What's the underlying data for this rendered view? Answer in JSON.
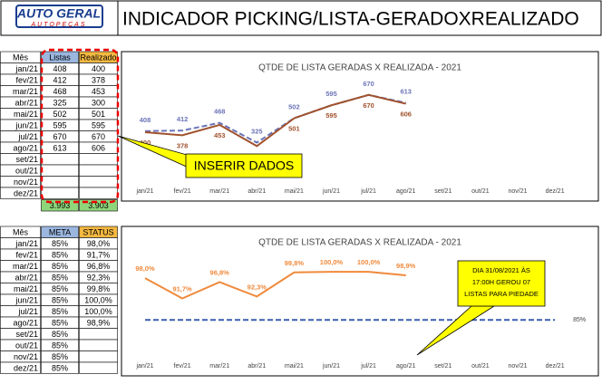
{
  "header": {
    "logo": "AUTO GERAL",
    "logo_sub": "AUTOPEÇAS",
    "title": "INDICADOR PICKING/LISTA-GERADOXREALIZADO"
  },
  "table1": {
    "columns": [
      "Mês",
      "Listas",
      "Realizado"
    ],
    "rows": [
      [
        "jan/21",
        "408",
        "400"
      ],
      [
        "fev/21",
        "412",
        "378"
      ],
      [
        "mar/21",
        "468",
        "453"
      ],
      [
        "abr/21",
        "325",
        "300"
      ],
      [
        "mai/21",
        "502",
        "501"
      ],
      [
        "jun/21",
        "595",
        "595"
      ],
      [
        "jul/21",
        "670",
        "670"
      ],
      [
        "ago/21",
        "613",
        "606"
      ],
      [
        "set/21",
        "",
        ""
      ],
      [
        "out/21",
        "",
        ""
      ],
      [
        "nov/21",
        "",
        ""
      ],
      [
        "dez/21",
        "",
        ""
      ]
    ],
    "totals": [
      "3.993",
      "3.903"
    ]
  },
  "table2": {
    "columns": [
      "Mês",
      "META",
      "STATUS"
    ],
    "rows": [
      [
        "jan/21",
        "85%",
        "98,0%"
      ],
      [
        "fev/21",
        "85%",
        "91,7%"
      ],
      [
        "mar/21",
        "85%",
        "96,8%"
      ],
      [
        "abr/21",
        "85%",
        "92,3%"
      ],
      [
        "mai/21",
        "85%",
        "99,8%"
      ],
      [
        "jun/21",
        "85%",
        "100,0%"
      ],
      [
        "jul/21",
        "85%",
        "100,0%"
      ],
      [
        "ago/21",
        "85%",
        "98,9%"
      ],
      [
        "set/21",
        "85%",
        ""
      ],
      [
        "out/21",
        "85%",
        ""
      ],
      [
        "nov/21",
        "85%",
        ""
      ],
      [
        "dez/21",
        "85%",
        ""
      ]
    ]
  },
  "callout1": "INSERIR DADOS",
  "callout2": [
    "DIA 31/08/2021 ÀS",
    "17:00H GEROU 07",
    "LISTAS PARA PIEDADE"
  ],
  "chart_data": [
    {
      "type": "line",
      "title": "QTDE DE LISTA GERADAS X REALIZADA - 2021",
      "categories": [
        "jan/21",
        "fev/21",
        "mar/21",
        "abr/21",
        "mai/21",
        "jun/21",
        "jul/21",
        "ago/21",
        "set/21",
        "out/21",
        "nov/21",
        "dez/21"
      ],
      "ylim": [
        0,
        800
      ],
      "series": [
        {
          "color": "#6b74b8",
          "dashed": true,
          "values": [
            408,
            412,
            468,
            325,
            502,
            595,
            670,
            613,
            null,
            null,
            null,
            null
          ]
        },
        {
          "color": "#a0522d",
          "dashed": false,
          "values": [
            400,
            378,
            453,
            300,
            501,
            595,
            670,
            606,
            null,
            null,
            null,
            null
          ]
        }
      ]
    },
    {
      "type": "line",
      "title": "QTDE DE LISTA GERADAS X REALIZADA - 2021",
      "categories": [
        "jan/21",
        "fev/21",
        "mar/21",
        "abr/21",
        "mai/21",
        "jun/21",
        "jul/21",
        "ago/21",
        "set/21",
        "out/21",
        "nov/21",
        "dez/21"
      ],
      "ylim": [
        80,
        102
      ],
      "series": [
        {
          "color": "#f08a3c",
          "dashed": false,
          "values": [
            98.0,
            91.7,
            96.8,
            92.3,
            99.8,
            100.0,
            100.0,
            98.9,
            null,
            null,
            null,
            null
          ],
          "value_labels": [
            "98,0%",
            "91,7%",
            "96,8%",
            "92,3%",
            "99,8%",
            "100,0%",
            "100,0%",
            "98,9%",
            null,
            null,
            null,
            null
          ]
        },
        {
          "color": "#3a5fb0",
          "dashed": true,
          "values": [
            85,
            85,
            85,
            85,
            85,
            85,
            85,
            85,
            85,
            85,
            85,
            85
          ],
          "end_label": "85%"
        }
      ]
    }
  ]
}
